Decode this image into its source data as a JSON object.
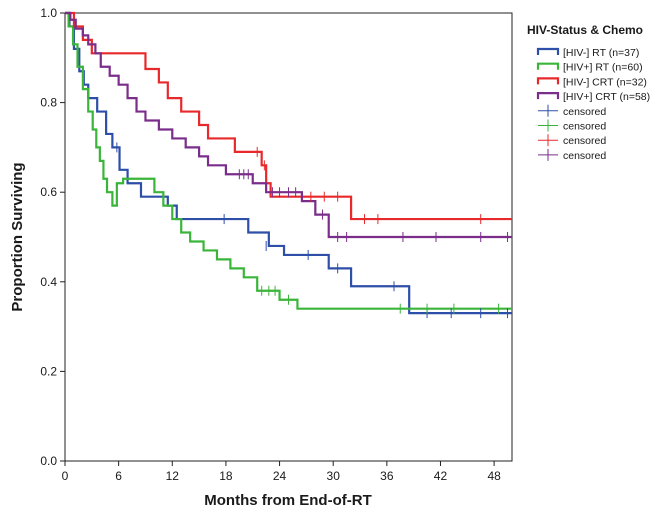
{
  "chart_data": {
    "type": "line",
    "subtype": "kaplan-meier survival step plot",
    "title": "",
    "xlabel": "Months from End-of-RT",
    "ylabel": "Proportion Surviving",
    "xlim": [
      0,
      50
    ],
    "ylim": [
      0,
      1.0
    ],
    "x_ticks": [
      0,
      6,
      12,
      18,
      24,
      30,
      36,
      42,
      48
    ],
    "x_tick_labels": [
      "0",
      "6",
      "12",
      "18",
      "24",
      "30",
      "36",
      "42",
      "48"
    ],
    "y_ticks": [
      0,
      0.2,
      0.4,
      0.6,
      0.8,
      1.0
    ],
    "y_tick_labels": [
      "0.0",
      "0.2",
      "0.4",
      "0.6",
      "0.8",
      "1.0"
    ],
    "grid": false,
    "legend_position": "right",
    "legend_title": "HIV-Status & Chemo",
    "legend_entries": [
      "[HIV-] RT (n=37)",
      "[HIV+] RT (n=60)",
      "[HIV-] CRT (n=32)",
      "[HIV+] CRT (n=58)",
      "censored",
      "censored",
      "censored",
      "censored"
    ],
    "series": [
      {
        "name": "[HIV-] RT (n=37)",
        "color": "#2e4fa8",
        "steps": [
          [
            0,
            1.0
          ],
          [
            0.5,
            0.97
          ],
          [
            1,
            0.92
          ],
          [
            1.6,
            0.87
          ],
          [
            2.1,
            0.84
          ],
          [
            2.6,
            0.81
          ],
          [
            3.6,
            0.78
          ],
          [
            4.6,
            0.73
          ],
          [
            5.3,
            0.7
          ],
          [
            6.1,
            0.65
          ],
          [
            7,
            0.62
          ],
          [
            8.5,
            0.59
          ],
          [
            11.5,
            0.57
          ],
          [
            12.5,
            0.54
          ],
          [
            20.5,
            0.51
          ],
          [
            22.8,
            0.48
          ],
          [
            24.5,
            0.46
          ],
          [
            29.5,
            0.43
          ],
          [
            32,
            0.39
          ],
          [
            38.5,
            0.33
          ]
        ],
        "end_x": 50,
        "censored": [
          [
            5.8,
            0.7
          ],
          [
            17.8,
            0.54
          ],
          [
            22.5,
            0.48
          ],
          [
            27.2,
            0.46
          ],
          [
            30.5,
            0.43
          ],
          [
            36.8,
            0.39
          ],
          [
            40.5,
            0.33
          ],
          [
            43.2,
            0.33
          ],
          [
            46.5,
            0.33
          ],
          [
            49.5,
            0.33
          ]
        ]
      },
      {
        "name": "[HIV+] RT (n=60)",
        "color": "#3ab53a",
        "steps": [
          [
            0,
            1.0
          ],
          [
            0.4,
            0.97
          ],
          [
            0.9,
            0.93
          ],
          [
            1.4,
            0.88
          ],
          [
            2,
            0.83
          ],
          [
            2.6,
            0.78
          ],
          [
            3.1,
            0.74
          ],
          [
            3.5,
            0.7
          ],
          [
            3.9,
            0.67
          ],
          [
            4.3,
            0.63
          ],
          [
            4.7,
            0.6
          ],
          [
            5.3,
            0.57
          ],
          [
            5.8,
            0.62
          ],
          [
            6.5,
            0.63
          ],
          [
            10,
            0.6
          ],
          [
            11,
            0.57
          ],
          [
            12,
            0.54
          ],
          [
            13,
            0.51
          ],
          [
            14,
            0.49
          ],
          [
            15.5,
            0.47
          ],
          [
            17,
            0.45
          ],
          [
            18.5,
            0.43
          ],
          [
            20,
            0.41
          ],
          [
            21.5,
            0.38
          ],
          [
            24,
            0.36
          ],
          [
            26,
            0.34
          ]
        ],
        "end_x": 50,
        "censored": [
          [
            22,
            0.38
          ],
          [
            22.8,
            0.38
          ],
          [
            23.5,
            0.38
          ],
          [
            25,
            0.36
          ],
          [
            37.5,
            0.34
          ],
          [
            40.5,
            0.34
          ],
          [
            43.5,
            0.34
          ],
          [
            48.5,
            0.34
          ]
        ]
      },
      {
        "name": "[HIV-] CRT (n=32)",
        "color": "#e8292b",
        "steps": [
          [
            0,
            1.0
          ],
          [
            1,
            0.97
          ],
          [
            2,
            0.94
          ],
          [
            3,
            0.91
          ],
          [
            9,
            0.875
          ],
          [
            10.5,
            0.845
          ],
          [
            11.5,
            0.81
          ],
          [
            13,
            0.78
          ],
          [
            15,
            0.75
          ],
          [
            16,
            0.72
          ],
          [
            19,
            0.69
          ],
          [
            22,
            0.66
          ],
          [
            22.5,
            0.62
          ],
          [
            23,
            0.59
          ],
          [
            32,
            0.54
          ]
        ],
        "end_x": 50,
        "censored": [
          [
            21.5,
            0.69
          ],
          [
            22.3,
            0.66
          ],
          [
            27.5,
            0.59
          ],
          [
            29,
            0.59
          ],
          [
            30.5,
            0.59
          ],
          [
            33.5,
            0.54
          ],
          [
            35,
            0.54
          ],
          [
            46.5,
            0.54
          ]
        ]
      },
      {
        "name": "[HIV+] CRT (n=58)",
        "color": "#7b2d8b",
        "steps": [
          [
            0,
            1.0
          ],
          [
            0.6,
            0.985
          ],
          [
            1.2,
            0.965
          ],
          [
            2,
            0.95
          ],
          [
            2.6,
            0.93
          ],
          [
            3.4,
            0.91
          ],
          [
            4,
            0.88
          ],
          [
            5,
            0.86
          ],
          [
            6,
            0.84
          ],
          [
            7,
            0.81
          ],
          [
            8,
            0.78
          ],
          [
            9,
            0.76
          ],
          [
            10.5,
            0.74
          ],
          [
            12,
            0.72
          ],
          [
            13.5,
            0.7
          ],
          [
            15,
            0.68
          ],
          [
            16,
            0.66
          ],
          [
            18,
            0.64
          ],
          [
            21,
            0.62
          ],
          [
            22.5,
            0.6
          ],
          [
            26.5,
            0.58
          ],
          [
            28,
            0.55
          ],
          [
            29.5,
            0.5
          ]
        ],
        "end_x": 50,
        "censored": [
          [
            19.5,
            0.64
          ],
          [
            20,
            0.64
          ],
          [
            20.5,
            0.64
          ],
          [
            23.2,
            0.6
          ],
          [
            24,
            0.6
          ],
          [
            25,
            0.6
          ],
          [
            25.8,
            0.6
          ],
          [
            28.8,
            0.55
          ],
          [
            30.5,
            0.5
          ],
          [
            31.5,
            0.5
          ],
          [
            37.8,
            0.5
          ],
          [
            41.5,
            0.5
          ],
          [
            46.5,
            0.5
          ],
          [
            49.5,
            0.5
          ]
        ]
      }
    ]
  }
}
